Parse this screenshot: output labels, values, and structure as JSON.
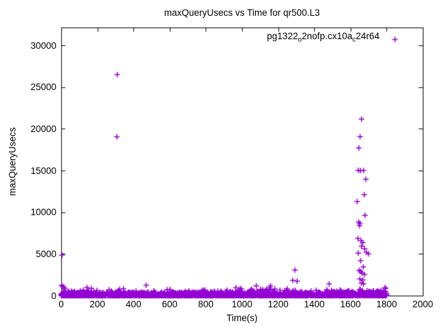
{
  "figure": {
    "background": "#ffffff",
    "border_color": "#000000",
    "text_color": "#000000"
  },
  "chart_data": {
    "type": "scatter",
    "title": "maxQueryUsecs vs Time for qr500.L3",
    "xlabel": "Time(s)",
    "ylabel": "maxQueryUsecs",
    "xlim": [
      0,
      2000
    ],
    "ylim": [
      0,
      32150
    ],
    "xticks": [
      0,
      200,
      400,
      600,
      800,
      1000,
      1200,
      1400,
      1600,
      1800,
      2000
    ],
    "yticks": [
      0,
      5000,
      10000,
      15000,
      20000,
      25000,
      30000
    ],
    "grid": false,
    "tick_style": "inward-mirrored",
    "legend": {
      "label_plain": "pg1322_o2nofp.cx10a_c24r64",
      "label_parts": [
        {
          "text": "pg1322",
          "sub": false
        },
        {
          "text": "o",
          "sub": true
        },
        {
          "text": "2nofp.cx10a",
          "sub": false
        },
        {
          "text": "c",
          "sub": true
        },
        {
          "text": "24r64",
          "sub": false
        }
      ],
      "marker_glyph": "+",
      "position": "top-right-inside"
    },
    "series": [
      {
        "name": "pg1322_o2nofp.cx10a_c24r64",
        "color": "#9400d3",
        "marker": "plus",
        "marker_size_px": 8,
        "outlier_points": [
          [
            310,
            26500
          ],
          [
            308,
            19050
          ],
          [
            2,
            1240
          ],
          [
            8,
            1100
          ],
          [
            5,
            4870
          ],
          [
            16,
            1000
          ],
          [
            470,
            1240
          ],
          [
            1079,
            1180
          ],
          [
            1158,
            1180
          ],
          [
            1293,
            3080
          ],
          [
            1281,
            1840
          ],
          [
            1305,
            1730
          ],
          [
            1482,
            1400
          ],
          [
            1661,
            21160
          ],
          [
            1653,
            19070
          ],
          [
            1646,
            17700
          ],
          [
            1643,
            15020
          ],
          [
            1655,
            14980
          ],
          [
            1672,
            15000
          ],
          [
            1685,
            13960
          ],
          [
            1676,
            12090
          ],
          [
            1637,
            11265
          ],
          [
            1680,
            9615
          ],
          [
            1645,
            8820
          ],
          [
            1652,
            8630
          ],
          [
            1650,
            8380
          ],
          [
            1641,
            6865
          ],
          [
            1658,
            6590
          ],
          [
            1668,
            6370
          ],
          [
            1661,
            5905
          ],
          [
            1678,
            5630
          ],
          [
            1643,
            5085
          ],
          [
            1688,
            5165
          ],
          [
            1700,
            5000
          ],
          [
            1656,
            4175
          ],
          [
            1671,
            3435
          ],
          [
            1648,
            3025
          ],
          [
            1656,
            2885
          ],
          [
            1664,
            2695
          ],
          [
            1677,
            2530
          ],
          [
            1652,
            1990
          ],
          [
            1668,
            1870
          ],
          [
            1660,
            1500
          ],
          [
            1672,
            1400
          ],
          [
            1790,
            950
          ]
        ],
        "dense_band": {
          "note": "solid band of per-second max query latencies, mostly 0-700 usecs from t=0 to t=1800 with occasional tips to ~1250",
          "seed": 1322,
          "segments": [
            {
              "count": 2300,
              "x_min": 0,
              "x_max": 1800,
              "y_min": 10,
              "y_amp": 640,
              "power": 3
            },
            {
              "count": 170,
              "x_min": 0,
              "x_max": 1800,
              "y_min": 340,
              "y_amp": 880,
              "power": 3
            },
            {
              "count": 50,
              "x_min": 950,
              "x_max": 1250,
              "y_min": 300,
              "y_amp": 800,
              "power": 2
            },
            {
              "count": 60,
              "x_min": 1500,
              "x_max": 1800,
              "y_min": 200,
              "y_amp": 1000,
              "power": 3
            },
            {
              "count": 80,
              "x_min": 0,
              "x_max": 120,
              "y_min": 0,
              "y_amp": 700,
              "power": 2
            }
          ]
        }
      }
    ]
  }
}
